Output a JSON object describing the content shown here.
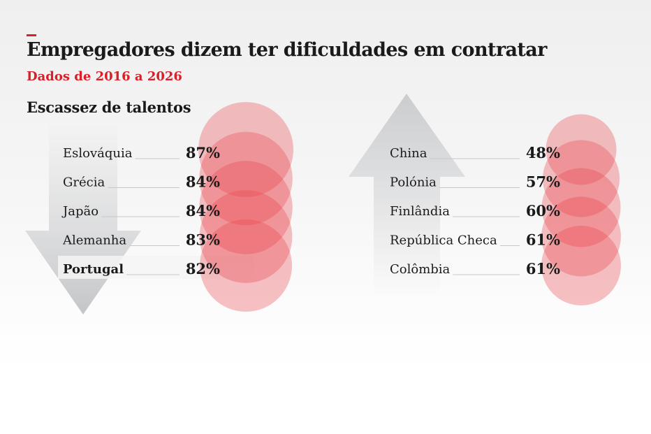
{
  "header": {
    "title": "Empregadores dizem ter dificuldades em contratar",
    "subtitle": "Dados de 2016 a 2026",
    "section": "Escassez de talentos"
  },
  "colors": {
    "accent": "#d8202a",
    "circle": "#e8404c",
    "arrow": "#cfd0d2"
  },
  "chart_data": [
    {
      "type": "bubble-list",
      "direction": "down",
      "arrow_icon": "arrow-down-icon",
      "categories": [
        "Eslováquia",
        "Grécia",
        "Japão",
        "Alemanha",
        "Portugal"
      ],
      "values": [
        87,
        84,
        84,
        83,
        82
      ],
      "labels": [
        "87%",
        "84%",
        "84%",
        "83%",
        "82%"
      ],
      "highlight": "Portugal"
    },
    {
      "type": "bubble-list",
      "direction": "up",
      "arrow_icon": "arrow-up-icon",
      "categories": [
        "China",
        "Polónia",
        "Finlândia",
        "República Checa",
        "Colômbia"
      ],
      "values": [
        48,
        57,
        60,
        61,
        61
      ],
      "labels": [
        "48%",
        "57%",
        "60%",
        "61%",
        "61%"
      ]
    }
  ]
}
